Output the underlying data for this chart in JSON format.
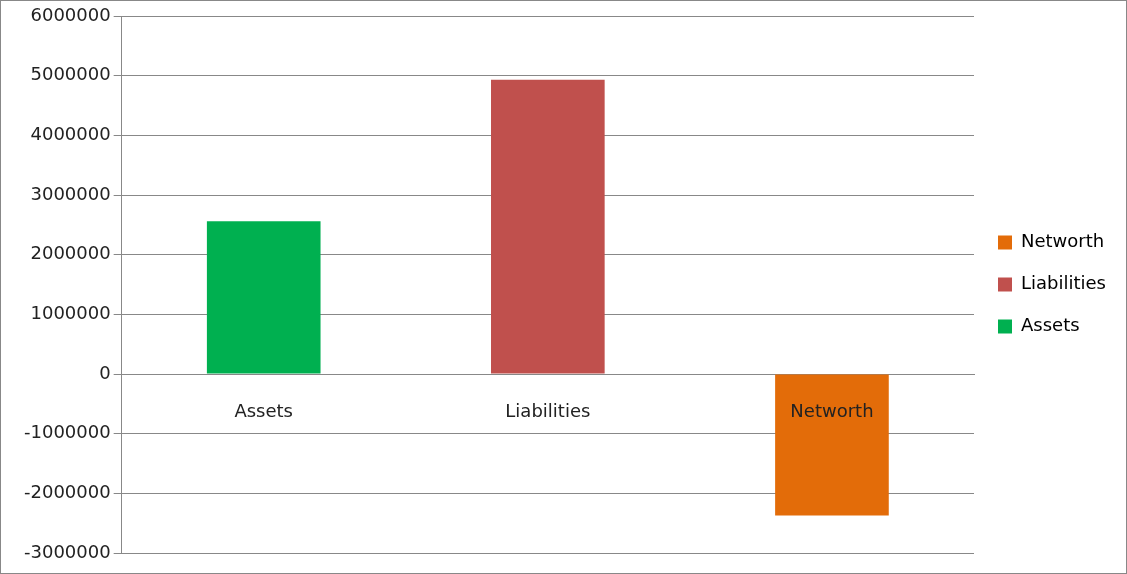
{
  "chart_data": {
    "type": "bar",
    "stacked": true,
    "categories": [
      "Assets",
      "Liabilities",
      "Networth"
    ],
    "series": [
      {
        "name": "Assets",
        "color": "#00b050",
        "values": [
          2560000,
          null,
          null
        ]
      },
      {
        "name": "Liabilities",
        "color": "#c0504d",
        "values": [
          null,
          4930000,
          null
        ]
      },
      {
        "name": "Networth",
        "color": "#e36c09",
        "values": [
          null,
          null,
          -2370000
        ]
      }
    ],
    "ylim": [
      -3000000,
      6000000
    ],
    "yticks": [
      -3000000,
      -2000000,
      -1000000,
      0,
      1000000,
      2000000,
      3000000,
      4000000,
      5000000,
      6000000
    ],
    "grid": "y",
    "legend": "right"
  }
}
